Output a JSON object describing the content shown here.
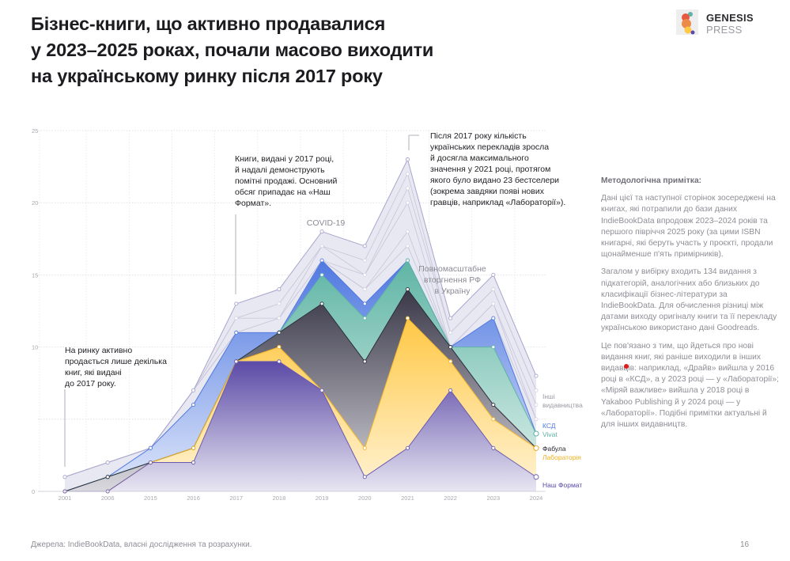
{
  "header": {
    "title_lines": [
      "Бізнес-книги, що активно продавалися",
      "у 2023–2025 роках, почали масово виходити",
      "на українському ринку після 2017 року"
    ],
    "logo": {
      "line1": "GENESIS",
      "line2": "PRESS",
      "icon": "genesis-dots-icon"
    }
  },
  "annotations": {
    "pre2017": "На ринку активно продається лише декілька книг, які видані до 2017 року.",
    "pre2017_lines": [
      "На ринку активно",
      "продається лише декілька",
      "книг, які видані",
      "до 2017 року."
    ],
    "y2017_lines": [
      "Книги, видані у 2017 році,",
      "й надалі демонструють",
      "помітні продажі. Основний",
      "обсяг припадає на «Наш",
      "Формат»."
    ],
    "y2021_lines": [
      "Після 2017 року кількість",
      "українських перекладів зросла",
      "й досягла максимального",
      "значення у 2021 році, протягом",
      "якого було видано 23 бестселери",
      "(зокрема завдяки появі нових",
      "гравців, наприклад «Лабораторії»)."
    ],
    "covid": "COVID-19",
    "invasion_lines": [
      "Повномасштабне",
      "вторгнення РФ",
      "в Україну"
    ]
  },
  "sidebar": {
    "heading": "Методологічна примітка:",
    "paragraphs": [
      "Дані цієї та наступної сторінок зосереджені на книгах, які потрапили до бази даних IndieBookData впродовж 2023–2024 років та першого півріччя 2025 року (за цими ISBN книгарні, які беруть участь у проєкті, продали щонайменше п'ять примірників).",
      "Загалом у вибірку входить 134 видання з підкатегорій, аналогічних або близьких до класифікації бізнес-літератури за IndieBookData. Для обчислення різниці між датами виходу оригіналу книги та її перекладу українською використано дані Goodreads.",
      "Це пов'язано з тим, що йдеться про нові видання книг, які раніше виходили в інших видавців: наприклад, «Драйв» вийшла у 2016 році в «КСД», а у 2023 році — у «Лабораторії»; «Міряй важливе» вийшла у 2018 році в Yakaboo Publishing й у 2024 році — у «Лабораторії». Подібні примітки актуальні й для інших видавництв."
    ]
  },
  "footer": {
    "source": "Джерела: IndieBookData, власні дослідження та розрахунки.",
    "page": "16"
  },
  "chart_data": {
    "type": "area",
    "stacked": true,
    "title": "",
    "xlabel": "",
    "ylabel": "",
    "x": [
      "2001",
      "2006",
      "2015",
      "2016",
      "2017",
      "2018",
      "2019",
      "2020",
      "2021",
      "2022",
      "2023",
      "2024"
    ],
    "ylim": [
      0,
      25
    ],
    "yticks": [
      0,
      5,
      10,
      15,
      20,
      25
    ],
    "ytick_labels": [
      "0",
      "",
      "10",
      "15",
      "20",
      "25"
    ],
    "grid": true,
    "legend_placement": "right (end labels)",
    "series_cumulative": [
      {
        "name": "Наш Формат",
        "color": "#5b4aa6",
        "values": [
          0,
          0,
          2,
          2,
          9,
          9,
          7,
          1,
          3,
          7,
          3,
          1
        ]
      },
      {
        "name": "Лабораторія",
        "color": "#ffc845",
        "values": [
          0,
          0,
          2,
          3,
          9,
          10,
          7,
          3,
          12,
          9,
          5,
          3
        ]
      },
      {
        "name": "Фабула",
        "color": "#3a3848",
        "values": [
          0,
          1,
          2,
          3,
          9,
          11,
          13,
          9,
          14,
          10,
          6,
          3
        ]
      },
      {
        "name": "Vivat",
        "color": "#5fb5a5",
        "values": [
          0,
          1,
          2,
          3,
          9,
          11,
          15,
          12,
          16,
          10,
          10,
          4
        ]
      },
      {
        "name": "КСД",
        "color": "#4f78e0",
        "values": [
          0,
          1,
          3,
          6,
          11,
          11,
          16,
          13,
          16,
          10,
          12,
          4
        ]
      },
      {
        "name": "Інші видавництва",
        "color": "#e6e6f0",
        "values": [
          1,
          2,
          3,
          7,
          13,
          14,
          18,
          17,
          23,
          12,
          15,
          8
        ]
      }
    ],
    "other_internal_lines": [
      [
        1,
        2,
        3,
        7,
        12,
        13,
        17,
        16,
        22,
        11,
        14,
        7
      ],
      [
        1,
        2,
        3,
        7,
        12,
        12,
        17,
        15,
        21,
        11,
        14,
        7
      ],
      [
        1,
        2,
        3,
        7,
        11,
        12,
        16,
        15,
        20,
        10,
        13,
        6
      ],
      [
        1,
        2,
        3,
        7,
        11,
        11,
        16,
        14,
        18,
        10,
        13,
        5
      ],
      [
        1,
        2,
        3,
        7,
        11,
        11,
        16,
        14,
        17,
        10,
        12,
        5
      ]
    ],
    "legend_labels": [
      "Інші видавництва",
      "КСД",
      "Vivat",
      "Фабула",
      "Лабораторія",
      "Наш Формат"
    ],
    "annotations": [
      "COVID-19 (2020)",
      "Повномасштабне вторгнення РФ в Україну (2022)"
    ]
  }
}
